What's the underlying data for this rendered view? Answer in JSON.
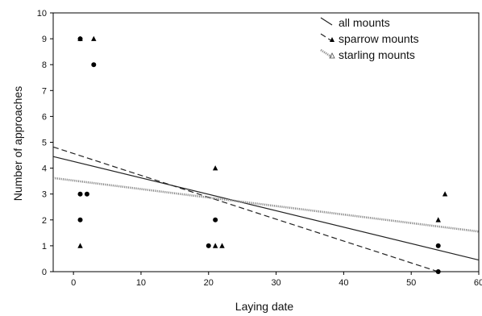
{
  "chart_data": {
    "type": "scatter",
    "title": "",
    "xlabel": "Laying date",
    "ylabel": "Number of approaches",
    "xlim": [
      -3,
      60
    ],
    "ylim": [
      0,
      10
    ],
    "x_ticks": [
      0,
      10,
      20,
      30,
      40,
      50,
      60
    ],
    "y_ticks": [
      0,
      1,
      2,
      3,
      4,
      5,
      6,
      7,
      8,
      9,
      10
    ],
    "grid": false,
    "legend_position": "top-right",
    "series": [
      {
        "name": "sparrow mounts",
        "marker": "circle",
        "points": [
          [
            1,
            9
          ],
          [
            3,
            8
          ],
          [
            1,
            3
          ],
          [
            2,
            3
          ],
          [
            1,
            2
          ],
          [
            20,
            1
          ],
          [
            21,
            2
          ],
          [
            54,
            1
          ],
          [
            54,
            0
          ]
        ]
      },
      {
        "name": "starling mounts",
        "marker": "triangle",
        "points": [
          [
            1,
            9
          ],
          [
            3,
            9
          ],
          [
            1,
            1
          ],
          [
            21,
            4
          ],
          [
            21,
            1
          ],
          [
            22,
            1
          ],
          [
            54,
            2
          ],
          [
            55,
            3
          ]
        ]
      }
    ],
    "trend_lines": [
      {
        "name": "all mounts",
        "style": "solid",
        "from": [
          -3,
          4.45
        ],
        "to": [
          60,
          0.45
        ]
      },
      {
        "name": "sparrow mounts",
        "style": "dashed",
        "from": [
          -3,
          4.82
        ],
        "to": [
          54,
          0
        ]
      },
      {
        "name": "starling mounts",
        "style": "dotted-gray",
        "from": [
          -3,
          3.62
        ],
        "to": [
          60,
          1.55
        ]
      }
    ],
    "legend": [
      {
        "label": "all mounts",
        "style": "solid"
      },
      {
        "label": "sparrow mounts",
        "style": "dashed"
      },
      {
        "label": "starling mounts",
        "style": "dotted-gray"
      }
    ]
  }
}
